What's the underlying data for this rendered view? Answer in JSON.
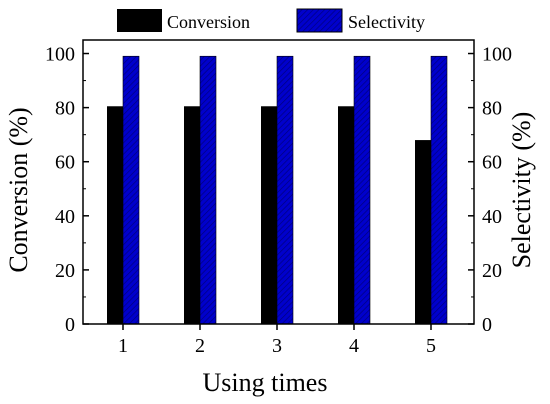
{
  "chart_data": {
    "type": "bar",
    "categories": [
      "1",
      "2",
      "3",
      "4",
      "5"
    ],
    "series": [
      {
        "name": "Conversion",
        "axis": "left",
        "color": "#000000",
        "values": [
          80.5,
          80.5,
          80.5,
          80.5,
          68
        ]
      },
      {
        "name": "Selectivity",
        "axis": "right",
        "color": "#0000cc",
        "pattern": "diagonal-hatch",
        "values": [
          99,
          99,
          99,
          99,
          99
        ]
      }
    ],
    "xlabel": "Using times",
    "ylabel_left": "Conversion (%)",
    "ylabel_right": "Selectivity (%)",
    "ylim": [
      0,
      105
    ],
    "yticks": [
      0,
      20,
      40,
      60,
      80,
      100
    ],
    "legend_position": "top",
    "grid": false
  }
}
